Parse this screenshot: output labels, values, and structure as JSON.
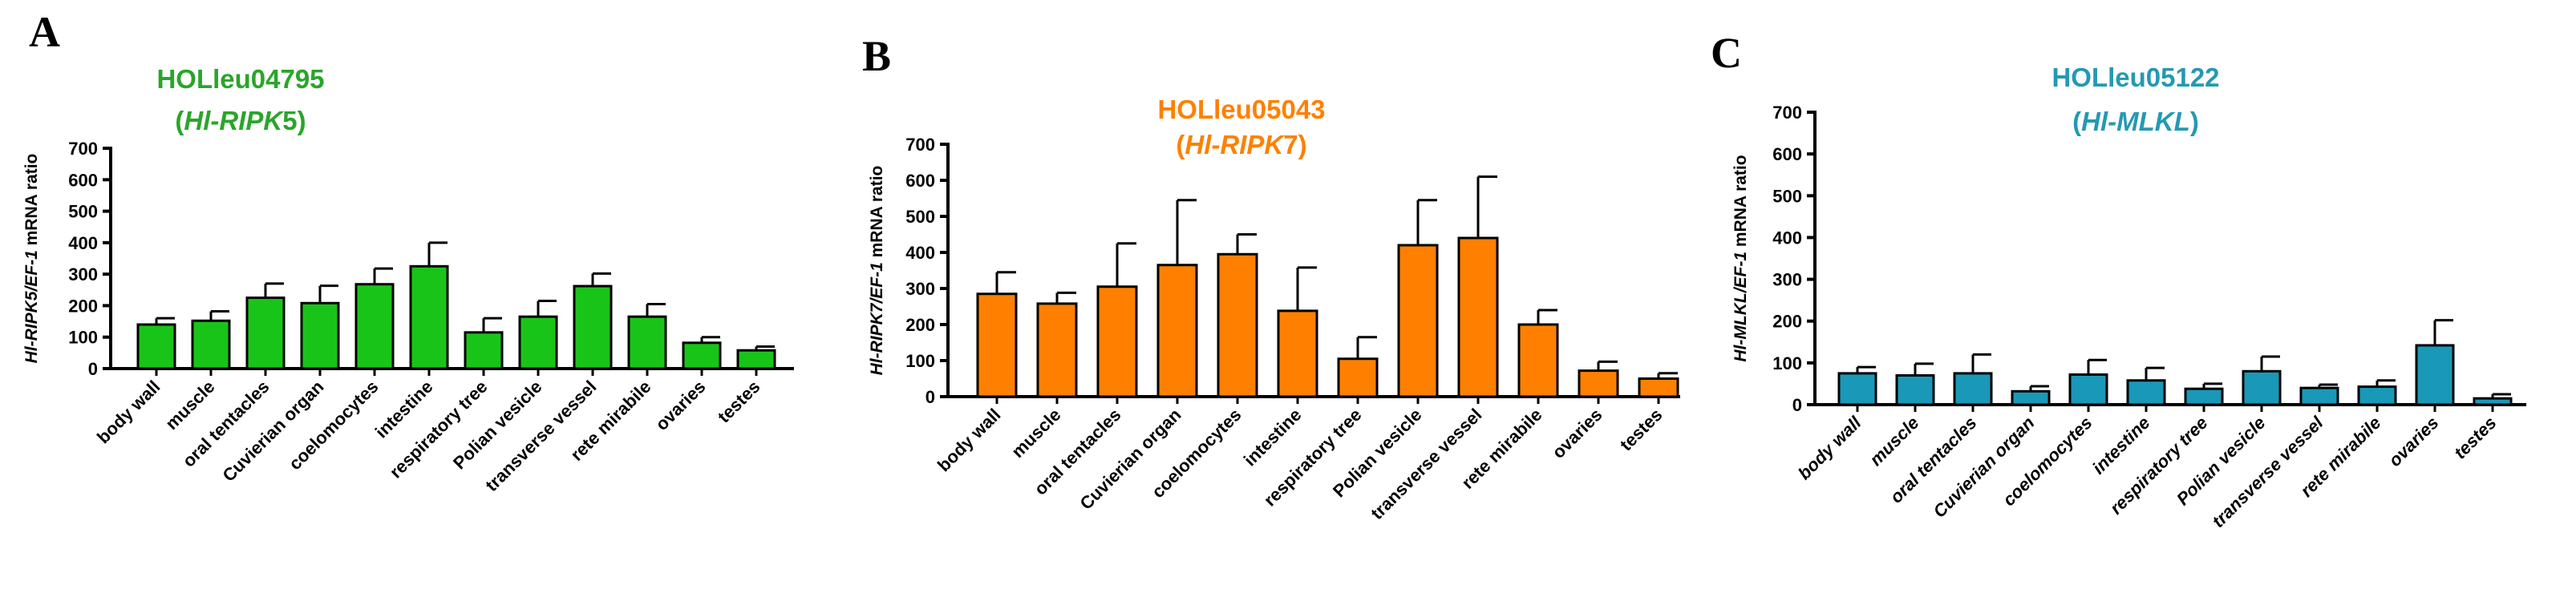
{
  "chart_data": [
    {
      "type": "bar",
      "panel": "A",
      "title": "HOLleu04795",
      "subtitle": "(Hl-RIPK5)",
      "ylabel": "Hl-RIPK5/EF-1 mRNA ratio",
      "ylim": [
        0,
        700
      ],
      "yticks": [
        0,
        100,
        200,
        300,
        400,
        500,
        600,
        700
      ],
      "color": "#19c419",
      "title_color": "#2aa52a",
      "categories": [
        "body wall",
        "muscle",
        "oral tentacles",
        "Cuvierian organ",
        "coelomocytes",
        "intestine",
        "respiratory tree",
        "Polian vesicle",
        "transverse vessel",
        "rete mirabile",
        "ovaries",
        "testes"
      ],
      "values": [
        140,
        152,
        225,
        208,
        268,
        325,
        115,
        165,
        262,
        165,
        82,
        58
      ],
      "errors": [
        20,
        30,
        45,
        55,
        50,
        75,
        45,
        50,
        40,
        40,
        18,
        12
      ]
    },
    {
      "type": "bar",
      "panel": "B",
      "title": "HOLleu05043",
      "subtitle": "(Hl-RIPK7)",
      "ylabel": "Hl-RIPK7/EF-1 mRNA ratio",
      "ylim": [
        0,
        700
      ],
      "yticks": [
        0,
        100,
        200,
        300,
        400,
        500,
        600,
        700
      ],
      "color": "#ff8000",
      "title_color": "#ff8000",
      "categories": [
        "body wall",
        "muscle",
        "oral tentacles",
        "Cuvierian organ",
        "coelomocytes",
        "intestine",
        "respiratory tree",
        "Polian vesicle",
        "transverse vessel",
        "rete mirabile",
        "ovaries",
        "testes"
      ],
      "values": [
        285,
        258,
        305,
        365,
        395,
        238,
        105,
        420,
        440,
        200,
        72,
        50
      ],
      "errors": [
        60,
        30,
        120,
        180,
        55,
        120,
        60,
        125,
        170,
        40,
        25,
        15
      ]
    },
    {
      "type": "bar",
      "panel": "C",
      "title": "HOLleu05122",
      "subtitle": "(Hl-MLKL)",
      "ylabel": "Hl-MLKL/EF-1 mRNA ratio",
      "ylim": [
        0,
        700
      ],
      "yticks": [
        0,
        100,
        200,
        300,
        400,
        500,
        600,
        700
      ],
      "color": "#1a98b8",
      "title_color": "#2499b3",
      "categories": [
        "body wall",
        "muscle",
        "oral tentacles",
        "Cuvierian organ",
        "coelomocytes",
        "intestine",
        "respiratory tree",
        "Polian vesicle",
        "transverse vessel",
        "rete mirabile",
        "ovaries",
        "testes"
      ],
      "values": [
        75,
        70,
        75,
        32,
        72,
        58,
        38,
        80,
        40,
        43,
        142,
        15
      ],
      "errors": [
        15,
        28,
        45,
        12,
        35,
        30,
        12,
        35,
        8,
        15,
        60,
        10
      ]
    }
  ]
}
